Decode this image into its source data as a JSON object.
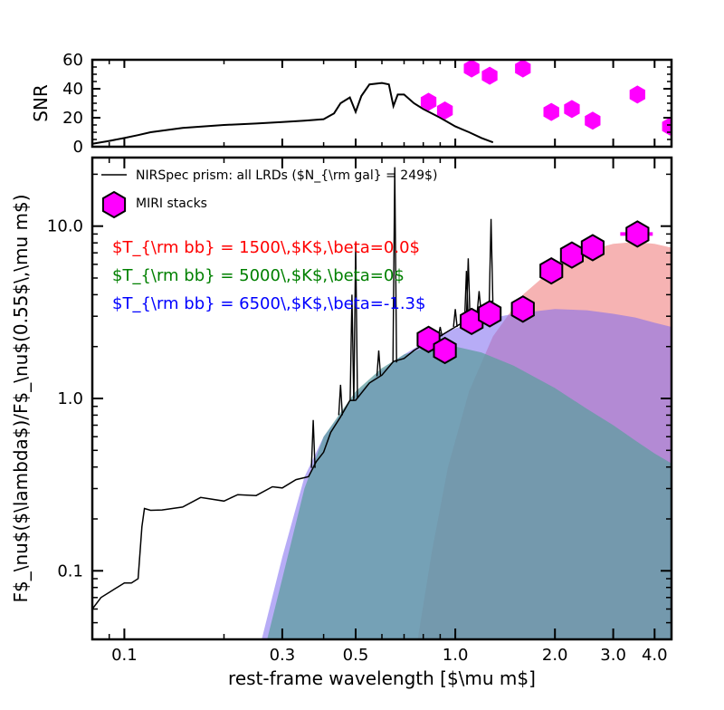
{
  "chart_data": [
    {
      "name": "snr-panel",
      "type": "line",
      "ylabel": "SNR",
      "xscale": "log",
      "xlim": [
        0.08,
        4.5
      ],
      "ylim": [
        0,
        60
      ],
      "yticks": [
        0,
        20,
        40,
        60
      ],
      "ytick_labels": [
        "0",
        "20",
        "40",
        "60"
      ],
      "series": [
        {
          "role": "prism",
          "type": "line",
          "color": "#000000",
          "x": [
            0.08,
            0.09,
            0.1,
            0.11,
            0.12,
            0.15,
            0.2,
            0.25,
            0.3,
            0.35,
            0.4,
            0.43,
            0.45,
            0.48,
            0.5,
            0.52,
            0.55,
            0.6,
            0.63,
            0.65,
            0.67,
            0.7,
            0.75,
            0.8,
            0.9,
            1.0,
            1.1,
            1.2,
            1.3
          ],
          "y": [
            2,
            4,
            6,
            8,
            10,
            13,
            15,
            16,
            17,
            18,
            19,
            23,
            30,
            34,
            24,
            35,
            43,
            44,
            43,
            28,
            36,
            36,
            30,
            26,
            20,
            14,
            10,
            6,
            3
          ]
        },
        {
          "role": "miri",
          "type": "scatter",
          "color": "#ff00ff",
          "x": [
            0.83,
            0.93,
            1.12,
            1.27,
            1.6,
            1.95,
            2.25,
            2.6,
            3.55,
            4.45
          ],
          "y": [
            31,
            25,
            54,
            49,
            54,
            24,
            26,
            18,
            36,
            14
          ]
        }
      ]
    },
    {
      "name": "sed-panel",
      "type": "line",
      "xlabel": "rest-frame wavelength [$\\mu m$]",
      "ylabel": "F$_\\nu$($\\lambda$)/F$_\\nu$(0.55$\\,\\mu m$)",
      "xscale": "log",
      "yscale": "log",
      "xlim": [
        0.08,
        4.5
      ],
      "ylim": [
        0.04,
        25
      ],
      "xticks": [
        0.1,
        0.3,
        0.5,
        1.0,
        2.0,
        3.0,
        4.0
      ],
      "xtick_labels": [
        "0.1",
        "0.3",
        "0.5",
        "1.0",
        "2.0",
        "3.0",
        "4.0"
      ],
      "yticks": [
        0.1,
        1.0,
        10.0
      ],
      "ytick_labels": [
        "0.1",
        "1.0",
        "10.0"
      ],
      "legend": {
        "location": "upper-left",
        "entries": [
          "NIRSpec prism: all LRDs ($N_{\\rm gal} = 249$)",
          "MIRI stacks"
        ]
      },
      "annotations": [
        {
          "text": "$T_{\\rm bb} = 1500\\,$K$,\\beta=0.0$",
          "color": "#ff0000"
        },
        {
          "text": "$T_{\\rm bb} = 5000\\,$K$,\\beta=0$",
          "color": "#008000"
        },
        {
          "text": "$T_{\\rm bb} = 6500\\,$K$,\\beta=-1.3$",
          "color": "#0000ff"
        }
      ],
      "series": [
        {
          "role": "prism",
          "type": "line",
          "color": "#000000",
          "x": [
            0.08,
            0.085,
            0.09,
            0.095,
            0.1,
            0.105,
            0.11,
            0.113,
            0.115,
            0.12,
            0.13,
            0.15,
            0.17,
            0.2,
            0.22,
            0.25,
            0.28,
            0.3,
            0.33,
            0.36,
            0.38,
            0.4,
            0.42,
            0.45,
            0.48,
            0.5,
            0.55,
            0.6,
            0.65,
            0.7,
            0.75,
            0.8,
            0.85,
            0.9,
            0.95,
            1.0,
            1.05,
            1.1,
            1.15,
            1.2,
            1.25,
            1.3
          ],
          "y": [
            0.06,
            0.07,
            0.075,
            0.08,
            0.085,
            0.085,
            0.09,
            0.18,
            0.23,
            0.23,
            0.22,
            0.24,
            0.26,
            0.26,
            0.27,
            0.28,
            0.3,
            0.31,
            0.33,
            0.36,
            0.42,
            0.5,
            0.62,
            0.8,
            0.95,
            1.0,
            1.2,
            1.4,
            1.6,
            1.75,
            1.9,
            2.05,
            2.15,
            2.3,
            2.45,
            2.6,
            2.75,
            2.9,
            3.1,
            3.3,
            3.5,
            3.7
          ]
        },
        {
          "role": "prism-lines",
          "type": "line",
          "color": "#000000",
          "x": [
            0.372,
            0.45,
            0.487,
            0.5,
            0.587,
            0.656,
            0.9,
            1.0,
            1.08,
            1.094,
            1.18,
            1.282
          ],
          "y": [
            0.75,
            1.2,
            4.0,
            8.0,
            1.9,
            22.0,
            2.6,
            3.3,
            5.5,
            6.5,
            4.2,
            11.0
          ]
        },
        {
          "role": "miri",
          "type": "scatter",
          "color": "#ff00ff",
          "x": [
            0.83,
            0.93,
            1.12,
            1.27,
            1.6,
            1.95,
            2.25,
            2.6,
            3.55
          ],
          "y": [
            2.2,
            1.9,
            2.8,
            3.1,
            3.3,
            5.5,
            6.8,
            7.5,
            9.0
          ],
          "xerr": [
            null,
            null,
            null,
            null,
            null,
            null,
            null,
            null,
            0.4
          ]
        },
        {
          "role": "bb-1500",
          "type": "area",
          "color": "#f08080",
          "x": [
            0.77,
            0.85,
            0.95,
            1.1,
            1.3,
            1.6,
            2.0,
            2.5,
            3.0,
            3.5,
            4.0,
            4.5
          ],
          "y": [
            0.04,
            0.13,
            0.4,
            1.1,
            2.3,
            4.0,
            5.8,
            7.2,
            7.9,
            8.1,
            7.9,
            7.5
          ]
        },
        {
          "role": "bb-5000",
          "type": "area",
          "color": "#5f9ea0",
          "x": [
            0.27,
            0.3,
            0.35,
            0.4,
            0.5,
            0.6,
            0.7,
            0.8,
            1.0,
            1.2,
            1.5,
            2.0,
            2.5,
            3.0,
            3.5,
            4.0,
            4.5
          ],
          "y": [
            0.04,
            0.09,
            0.3,
            0.6,
            1.1,
            1.5,
            1.8,
            1.95,
            2.0,
            1.85,
            1.55,
            1.15,
            0.87,
            0.7,
            0.57,
            0.48,
            0.42
          ]
        },
        {
          "role": "bb-6500",
          "type": "area",
          "color": "#7b68ee",
          "x": [
            0.26,
            0.3,
            0.35,
            0.4,
            0.5,
            0.6,
            0.7,
            0.8,
            0.9,
            1.0,
            1.2,
            1.5,
            2.0,
            2.5,
            3.0,
            3.5,
            4.0,
            4.5
          ],
          "y": [
            0.04,
            0.12,
            0.35,
            0.6,
            1.05,
            1.45,
            1.8,
            2.1,
            2.35,
            2.55,
            2.85,
            3.1,
            3.3,
            3.25,
            3.1,
            2.95,
            2.75,
            2.6
          ]
        }
      ]
    }
  ]
}
